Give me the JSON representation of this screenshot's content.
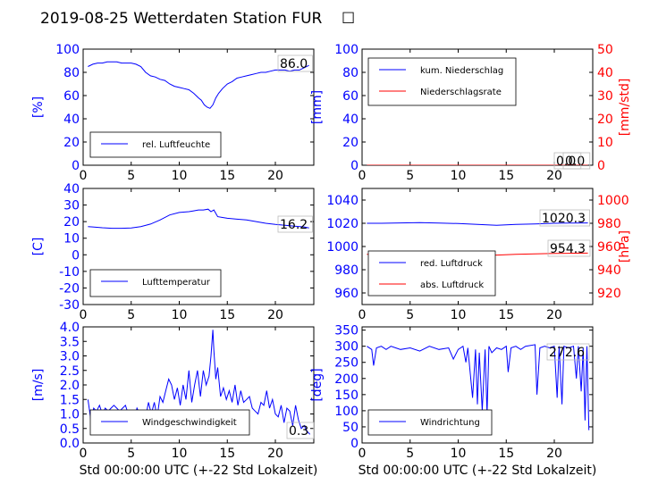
{
  "figure": {
    "title": "2019-08-25 Wetterdaten Station FUR",
    "title_glyph": "☐",
    "footer_x_label": "Std 00:00:00 UTC (+-22 Std Lokalzeit)"
  },
  "colors": {
    "blue": "#0000ff",
    "red": "#ff0000",
    "lightblue": "#8888ff"
  },
  "chart_data": [
    {
      "id": "humidity",
      "type": "line",
      "ylabel": "[%]",
      "ylim": [
        0,
        100
      ],
      "yticks": [
        0,
        20,
        40,
        60,
        80,
        100
      ],
      "xlim": [
        0,
        24
      ],
      "xticks": [
        0,
        5,
        10,
        15,
        20
      ],
      "legend": {
        "position": "lower-left",
        "entries": [
          "rel. Luftfeuchte"
        ]
      },
      "current_value": "86.0",
      "series": [
        {
          "name": "rel. Luftfeuchte",
          "color": "#0000ff",
          "x": [
            0.5,
            1,
            1.5,
            2,
            2.5,
            3,
            3.5,
            4,
            4.5,
            5,
            5.5,
            6,
            6.5,
            7,
            7.5,
            8,
            8.5,
            9,
            9.5,
            10,
            10.5,
            11,
            11.5,
            12,
            12.3,
            12.6,
            12.9,
            13.2,
            13.5,
            13.8,
            14.1,
            14.5,
            15,
            15.5,
            16,
            16.5,
            17,
            17.5,
            18,
            18.5,
            19,
            19.5,
            20,
            20.5,
            21,
            21.5,
            22,
            22.5,
            23,
            23.5
          ],
          "y": [
            85,
            87,
            88,
            88,
            89,
            89,
            89,
            88,
            88,
            88,
            87,
            85,
            80,
            77,
            76,
            74,
            73,
            70,
            68,
            67,
            66,
            65,
            62,
            58,
            56,
            52,
            50,
            49,
            52,
            58,
            62,
            66,
            70,
            72,
            75,
            76,
            77,
            78,
            79,
            80,
            80,
            81,
            82,
            82,
            82,
            81,
            82,
            82,
            84,
            86
          ]
        }
      ]
    },
    {
      "id": "precip",
      "type": "line",
      "ylabel": "[mm]",
      "ylim": [
        0,
        100
      ],
      "yticks": [
        0,
        20,
        40,
        60,
        80,
        100
      ],
      "ylabel_right": "[mm/std]",
      "ylim_right": [
        0,
        50
      ],
      "yticks_right": [
        0,
        10,
        20,
        30,
        40,
        50
      ],
      "xlim": [
        0,
        24
      ],
      "xticks": [
        0,
        5,
        10,
        15,
        20
      ],
      "legend": {
        "position": "upper-left",
        "entries": [
          "kum. Niederschlag",
          "Niederschlagsrate"
        ]
      },
      "current_value": "0.0",
      "current_value_right": "0.0",
      "series": [
        {
          "name": "kum. Niederschlag",
          "color": "#0000ff",
          "axis": "left",
          "x": [
            0.5,
            23.5
          ],
          "y": [
            0,
            0
          ]
        },
        {
          "name": "Niederschlagsrate",
          "color": "#ff0000",
          "axis": "right",
          "x": [
            0.5,
            23.5
          ],
          "y": [
            0,
            0
          ]
        }
      ]
    },
    {
      "id": "temperature",
      "type": "line",
      "ylabel": "[C]",
      "ylim": [
        -30,
        40
      ],
      "yticks": [
        -30,
        -20,
        -10,
        0,
        10,
        20,
        30,
        40
      ],
      "xlim": [
        0,
        24
      ],
      "xticks": [
        0,
        5,
        10,
        15,
        20
      ],
      "legend": {
        "position": "lower-left",
        "entries": [
          "Lufttemperatur"
        ]
      },
      "current_value": "16.2",
      "series": [
        {
          "name": "Lufttemperatur",
          "color": "#0000ff",
          "x": [
            0.5,
            1,
            2,
            3,
            4,
            5,
            6,
            7,
            8,
            9,
            10,
            11,
            11.5,
            12,
            12.5,
            13,
            13.3,
            13.6,
            14,
            14.5,
            15,
            16,
            17,
            18,
            19,
            20,
            21,
            22,
            23,
            23.5
          ],
          "y": [
            17,
            16.8,
            16.3,
            16,
            16,
            16.2,
            17,
            18.5,
            21,
            24,
            25.5,
            26,
            26.5,
            27,
            27,
            27.5,
            26,
            27,
            23,
            22.5,
            22,
            21.5,
            21,
            20,
            19,
            18.3,
            17.8,
            17.2,
            16.8,
            16.2
          ]
        }
      ]
    },
    {
      "id": "pressure",
      "type": "line",
      "ylabel": "",
      "ylim": [
        950,
        1050
      ],
      "yticks": [
        960,
        980,
        1000,
        1020,
        1040
      ],
      "ylabel_right": "[hPa]",
      "ylim_right": [
        910,
        1010
      ],
      "yticks_right": [
        920,
        940,
        960,
        980,
        1000
      ],
      "xlim": [
        0,
        24
      ],
      "xticks": [
        0,
        5,
        10,
        15,
        20
      ],
      "legend": {
        "position": "lower-left",
        "entries": [
          "red. Luftdruck",
          "abs. Luftdruck"
        ]
      },
      "current_value": "1020.3",
      "current_value_right": "954.3",
      "series": [
        {
          "name": "red. Luftdruck",
          "color": "#0000ff",
          "axis": "left",
          "x": [
            0.5,
            2,
            4,
            6,
            8,
            10,
            12,
            14,
            16,
            18,
            20,
            22,
            23.5
          ],
          "y": [
            1020,
            1020,
            1020.3,
            1020.6,
            1020.2,
            1019.8,
            1019,
            1018.2,
            1019,
            1019.5,
            1020,
            1020.2,
            1020.3
          ]
        },
        {
          "name": "abs. Luftdruck",
          "color": "#ff0000",
          "axis": "right",
          "x": [
            0.5,
            2,
            4,
            6,
            8,
            10,
            12,
            14,
            16,
            18,
            20,
            22,
            23.5
          ],
          "y": [
            953.2,
            953.3,
            953.3,
            953.5,
            953.4,
            953.2,
            952.8,
            952.6,
            953.2,
            953.6,
            954,
            954.2,
            954.3
          ]
        }
      ]
    },
    {
      "id": "wind_speed",
      "type": "line",
      "ylabel": "[m/s]",
      "ylim": [
        0,
        4
      ],
      "yticks": [
        0,
        0.5,
        1,
        1.5,
        2,
        2.5,
        3,
        3.5,
        4
      ],
      "ytick_labels": [
        "0.0",
        "0.5",
        "1.0",
        "1.5",
        "2.0",
        "2.5",
        "3.0",
        "3.5",
        "4.0"
      ],
      "xlim": [
        0,
        24
      ],
      "xticks": [
        0,
        5,
        10,
        15,
        20
      ],
      "legend": {
        "position": "lower-center",
        "entries": [
          "Windgeschwindigkeit"
        ]
      },
      "current_value": "0.3",
      "series": [
        {
          "name": "Windgeschwindigkeit",
          "color": "#0000ff",
          "x": [
            0.5,
            0.8,
            1.1,
            1.4,
            1.7,
            2,
            2.3,
            2.6,
            2.9,
            3.2,
            3.5,
            3.8,
            4.1,
            4.4,
            4.7,
            5,
            5.3,
            5.6,
            5.9,
            6.2,
            6.5,
            6.8,
            7.1,
            7.4,
            7.7,
            8,
            8.3,
            8.6,
            8.9,
            9.2,
            9.5,
            9.8,
            10.1,
            10.4,
            10.7,
            11,
            11.3,
            11.6,
            11.9,
            12.2,
            12.5,
            12.8,
            13.1,
            13.3,
            13.5,
            13.6,
            13.8,
            14,
            14.3,
            14.6,
            14.9,
            15.2,
            15.5,
            15.8,
            16.1,
            16.4,
            16.7,
            17,
            17.3,
            17.6,
            17.9,
            18.2,
            18.5,
            18.8,
            19.1,
            19.4,
            19.7,
            20,
            20.3,
            20.6,
            20.9,
            21.2,
            21.5,
            21.8,
            22.1,
            22.4,
            22.7,
            23,
            23.3,
            23.6
          ],
          "y": [
            1.5,
            0.8,
            1.2,
            1.1,
            1.3,
            1,
            1.2,
            1.1,
            1.2,
            1.3,
            1.2,
            1.1,
            1.2,
            1.3,
            1,
            0.9,
            0.8,
            1.2,
            1,
            1,
            0.9,
            1.4,
            1,
            1.4,
            0.9,
            1.6,
            1.4,
            1.8,
            2.2,
            2,
            1.5,
            1.9,
            1.3,
            2,
            1.5,
            2.5,
            1.4,
            2,
            2.5,
            1.6,
            2.5,
            2,
            2.3,
            3,
            3.9,
            3.2,
            2.2,
            2.6,
            1.6,
            1.9,
            1.5,
            1.8,
            1.4,
            2,
            1.3,
            1.8,
            1.4,
            1.5,
            1.6,
            1.2,
            1.1,
            1,
            1.4,
            1.3,
            1.8,
            1.2,
            1.5,
            1,
            0.9,
            1.3,
            0.7,
            1.2,
            1.1,
            0.6,
            1.3,
            0.8,
            0.5,
            0.6,
            0.4,
            0.3
          ]
        }
      ]
    },
    {
      "id": "wind_direction",
      "type": "line",
      "ylabel": "[deg]",
      "ylim": [
        0,
        360
      ],
      "yticks": [
        0,
        50,
        100,
        150,
        200,
        250,
        300,
        350
      ],
      "xlim": [
        0,
        24
      ],
      "xticks": [
        0,
        5,
        10,
        15,
        20
      ],
      "legend": {
        "position": "lower-left",
        "entries": [
          "Windrichtung"
        ]
      },
      "current_value": "272.6",
      "series": [
        {
          "name": "Windrichtung",
          "color": "#0000ff",
          "x": [
            0.5,
            1,
            1.2,
            1.5,
            2,
            2.5,
            3,
            3.5,
            4,
            5,
            6,
            7,
            8,
            9,
            9.5,
            10,
            10.5,
            10.8,
            11,
            11.5,
            11.8,
            12,
            12.2,
            12.5,
            12.8,
            13,
            13.2,
            13.5,
            14,
            14.5,
            15,
            15.2,
            15.5,
            16,
            16.5,
            17,
            18,
            18.2,
            18.5,
            19,
            19.5,
            20,
            20.3,
            20.5,
            20.8,
            21,
            21.5,
            22,
            22.3,
            22.5,
            22.8,
            23,
            23.2,
            23.4,
            23.6
          ],
          "y": [
            300,
            290,
            240,
            295,
            300,
            290,
            300,
            295,
            290,
            295,
            285,
            300,
            290,
            295,
            260,
            290,
            300,
            250,
            295,
            140,
            290,
            120,
            280,
            100,
            290,
            90,
            300,
            280,
            295,
            290,
            300,
            220,
            295,
            300,
            290,
            300,
            305,
            150,
            295,
            300,
            295,
            300,
            140,
            300,
            120,
            300,
            295,
            300,
            200,
            300,
            160,
            295,
            70,
            300,
            40
          ]
        }
      ]
    }
  ]
}
